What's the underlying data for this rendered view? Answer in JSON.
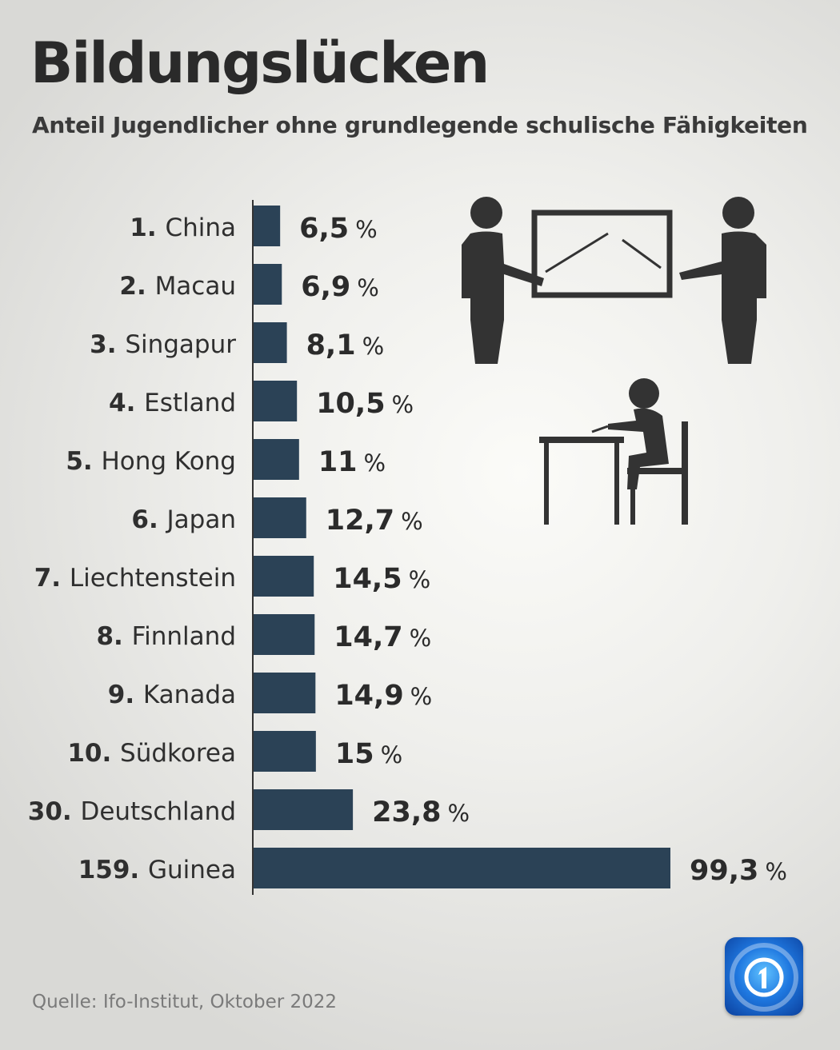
{
  "title": "Bildungslücken",
  "subtitle": "Anteil Jugendlicher ohne grundlegende schulische Fähigkeiten",
  "source": "Quelle: Ifo-Institut, Oktober 2022",
  "colors": {
    "bar": "#2b4256",
    "axis": "#333333"
  },
  "icons": [
    "teachers-at-board-icon",
    "student-at-desk-icon",
    "tagesschau-logo-icon"
  ],
  "chart_data": {
    "type": "bar",
    "orientation": "horizontal",
    "title": "Bildungslücken",
    "subtitle": "Anteil Jugendlicher ohne grundlegende schulische Fähigkeiten",
    "unit": "%",
    "xlim": [
      0,
      100
    ],
    "grid": false,
    "categories": [
      {
        "rank": "1.",
        "name": "China"
      },
      {
        "rank": "2.",
        "name": "Macau"
      },
      {
        "rank": "3.",
        "name": "Singapur"
      },
      {
        "rank": "4.",
        "name": "Estland"
      },
      {
        "rank": "5.",
        "name": "Hong Kong"
      },
      {
        "rank": "6.",
        "name": "Japan"
      },
      {
        "rank": "7.",
        "name": "Liechtenstein"
      },
      {
        "rank": "8.",
        "name": "Finnland"
      },
      {
        "rank": "9.",
        "name": "Kanada"
      },
      {
        "rank": "10.",
        "name": "Südkorea"
      },
      {
        "rank": "30.",
        "name": "Deutschland"
      },
      {
        "rank": "159.",
        "name": "Guinea"
      }
    ],
    "values": [
      6.5,
      6.9,
      8.1,
      10.5,
      11,
      12.7,
      14.5,
      14.7,
      14.9,
      15,
      23.8,
      99.3
    ],
    "value_labels": [
      "6,5",
      "6,9",
      "8,1",
      "10,5",
      "11",
      "12,7",
      "14,5",
      "14,7",
      "14,9",
      "15",
      "23,8",
      "99,3"
    ]
  }
}
